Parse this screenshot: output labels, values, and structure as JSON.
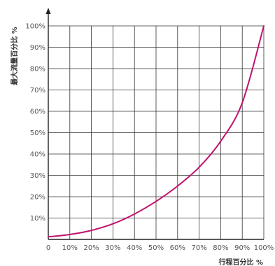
{
  "chart_data": {
    "type": "line",
    "xlabel": "行程百分比 %",
    "ylabel": "最大流量百分比 %",
    "x_ticks": [
      "0",
      "10%",
      "20%",
      "30%",
      "40%",
      "50%",
      "60%",
      "70%",
      "80%",
      "90%",
      "100%"
    ],
    "y_ticks": [
      "10%",
      "20%",
      "30%",
      "40%",
      "50%",
      "60%",
      "70%",
      "80%",
      "90%",
      "100%"
    ],
    "xlim": [
      0,
      100
    ],
    "ylim": [
      0,
      100
    ],
    "grid": true,
    "series": [
      {
        "color": "#c0126e",
        "x": [
          0,
          10,
          20,
          30,
          40,
          50,
          60,
          70,
          80,
          90,
          100
        ],
        "y": [
          1.2,
          2.3,
          4.2,
          7.3,
          11.9,
          17.8,
          25.0,
          33.8,
          46.0,
          64.0,
          100.0
        ]
      }
    ]
  }
}
